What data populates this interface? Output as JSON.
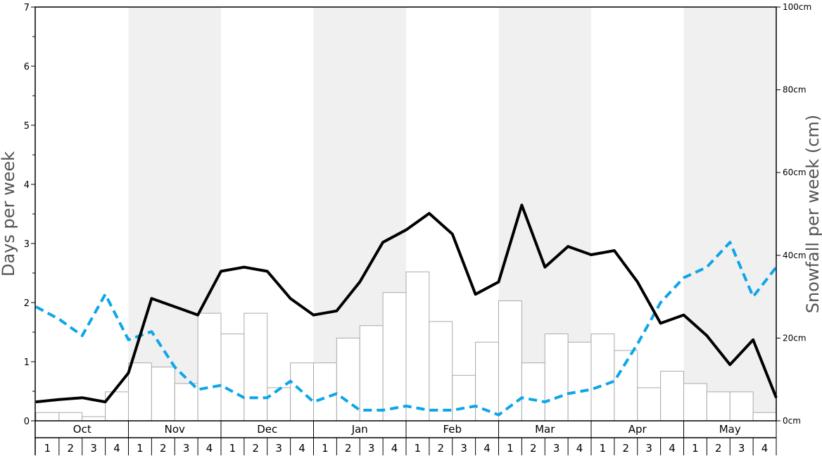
{
  "chart_data": {
    "type": "bar",
    "left_axis": {
      "title": "Days per week",
      "ylim": [
        0,
        7
      ],
      "ticks": [
        "0",
        "1",
        "2",
        "3",
        "4",
        "5",
        "6",
        "7"
      ]
    },
    "right_axis": {
      "title": "Snowfall per week (cm)",
      "ylim": [
        0,
        100
      ],
      "ticks": [
        "0cm",
        "20cm",
        "40cm",
        "60cm",
        "80cm",
        "100cm"
      ]
    },
    "months": [
      "Oct",
      "Nov",
      "Dec",
      "Jan",
      "Feb",
      "Mar",
      "Apr",
      "May"
    ],
    "weeks": [
      "1",
      "2",
      "3",
      "4"
    ],
    "shaded_months": [
      "Nov",
      "Jan",
      "Mar",
      "May"
    ],
    "series": [
      {
        "kind": "bar",
        "axis": "right",
        "color": "#ffffff",
        "edge_color": "#aaaaaa",
        "values": [
          2,
          2,
          1,
          7,
          14,
          13,
          9,
          26,
          21,
          26,
          8,
          14,
          14,
          20,
          23,
          31,
          36,
          24,
          11,
          19,
          29,
          14,
          21,
          19,
          21,
          17,
          8,
          12,
          9,
          7,
          7,
          2
        ]
      },
      {
        "kind": "line",
        "axis": "left",
        "color": "#000000",
        "style": "solid",
        "values": [
          0.32,
          0.36,
          0.39,
          0.32,
          0.81,
          2.07,
          1.93,
          1.79,
          2.53,
          2.6,
          2.53,
          2.07,
          1.79,
          1.86,
          2.35,
          3.02,
          3.23,
          3.51,
          3.16,
          2.14,
          2.35,
          3.65,
          2.6,
          2.95,
          2.81,
          2.88,
          2.35,
          1.65,
          1.79,
          1.44,
          0.95,
          1.37,
          0.39
        ]
      },
      {
        "kind": "line",
        "axis": "left",
        "color": "#0ea5e9",
        "style": "dashed",
        "values": [
          1.93,
          1.72,
          1.44,
          2.14,
          1.37,
          1.51,
          0.91,
          0.53,
          0.6,
          0.39,
          0.39,
          0.67,
          0.32,
          0.46,
          0.18,
          0.18,
          0.25,
          0.18,
          0.18,
          0.25,
          0.1,
          0.39,
          0.32,
          0.46,
          0.53,
          0.67,
          1.3,
          2.0,
          2.42,
          2.6,
          3.02,
          2.1,
          2.6
        ]
      }
    ]
  }
}
